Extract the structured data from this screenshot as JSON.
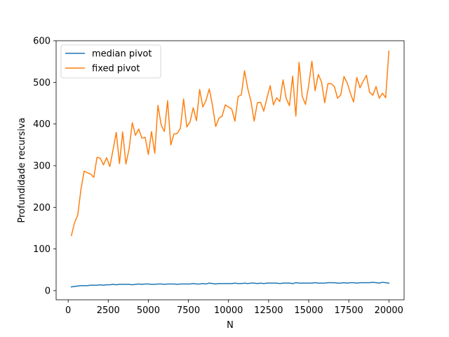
{
  "chart_data": {
    "type": "line",
    "title": "",
    "xlabel": "N",
    "ylabel": "Profundidade recursiva",
    "xlim": [
      -750,
      20950
    ],
    "ylim": [
      -22,
      600
    ],
    "xticks": [
      0,
      2500,
      5000,
      7500,
      10000,
      12500,
      15000,
      17500,
      20000
    ],
    "xtick_labels": [
      "0",
      "2500",
      "5000",
      "7500",
      "10000",
      "12500",
      "15000",
      "17500",
      "20000"
    ],
    "yticks": [
      0,
      100,
      200,
      300,
      400,
      500,
      600
    ],
    "ytick_labels": [
      "0",
      "100",
      "200",
      "300",
      "400",
      "500",
      "600"
    ],
    "grid": false,
    "legend_position": "upper-left",
    "x": [
      200,
      400,
      600,
      800,
      1000,
      1200,
      1400,
      1600,
      1800,
      2000,
      2200,
      2400,
      2600,
      2800,
      3000,
      3200,
      3400,
      3600,
      3800,
      4000,
      4200,
      4400,
      4600,
      4800,
      5000,
      5200,
      5400,
      5600,
      5800,
      6000,
      6200,
      6400,
      6600,
      6800,
      7000,
      7200,
      7400,
      7600,
      7800,
      8000,
      8200,
      8400,
      8600,
      8800,
      9000,
      9200,
      9400,
      9600,
      9800,
      10000,
      10200,
      10400,
      10600,
      10800,
      11000,
      11200,
      11400,
      11600,
      11800,
      12000,
      12200,
      12400,
      12600,
      12800,
      13000,
      13200,
      13400,
      13600,
      13800,
      14000,
      14200,
      14400,
      14600,
      14800,
      15000,
      15200,
      15400,
      15600,
      15800,
      16000,
      16200,
      16400,
      16600,
      16800,
      17000,
      17200,
      17400,
      17600,
      17800,
      18000,
      18200,
      18400,
      18600,
      18800,
      19000,
      19200,
      19400,
      19600,
      19800,
      20000
    ],
    "series": [
      {
        "name": "median pivot",
        "color": "#1f77b4",
        "values": [
          9,
          10,
          11,
          12,
          12,
          12,
          13,
          13,
          13,
          14,
          13,
          14,
          14,
          15,
          14,
          15,
          15,
          15,
          15,
          14,
          15,
          16,
          15,
          16,
          16,
          15,
          15,
          16,
          16,
          15,
          16,
          16,
          16,
          15,
          16,
          16,
          16,
          16,
          17,
          16,
          16,
          17,
          16,
          18,
          17,
          16,
          17,
          17,
          17,
          17,
          17,
          18,
          17,
          17,
          18,
          17,
          18,
          18,
          17,
          18,
          17,
          18,
          18,
          18,
          18,
          17,
          18,
          18,
          18,
          17,
          19,
          18,
          18,
          18,
          18,
          18,
          19,
          18,
          18,
          18,
          19,
          19,
          19,
          18,
          18,
          19,
          18,
          19,
          19,
          18,
          19,
          19,
          19,
          19,
          20,
          19,
          18,
          20,
          19,
          18
        ]
      },
      {
        "name": "fixed pivot",
        "color": "#ff7f0e",
        "values": [
          132,
          163,
          182,
          244,
          287,
          283,
          280,
          272,
          320,
          318,
          302,
          319,
          298,
          338,
          380,
          305,
          381,
          304,
          340,
          403,
          373,
          388,
          366,
          368,
          327,
          382,
          330,
          445,
          398,
          382,
          456,
          350,
          376,
          377,
          390,
          460,
          393,
          405,
          439,
          408,
          483,
          441,
          457,
          484,
          445,
          394,
          414,
          419,
          446,
          441,
          436,
          407,
          466,
          470,
          528,
          485,
          455,
          407,
          451,
          452,
          431,
          463,
          492,
          446,
          463,
          454,
          506,
          461,
          444,
          515,
          419,
          548,
          466,
          447,
          493,
          551,
          480,
          519,
          501,
          451,
          497,
          497,
          490,
          462,
          470,
          514,
          499,
          474,
          453,
          512,
          487,
          503,
          517,
          476,
          469,
          490,
          462,
          474,
          463,
          575
        ]
      }
    ]
  }
}
